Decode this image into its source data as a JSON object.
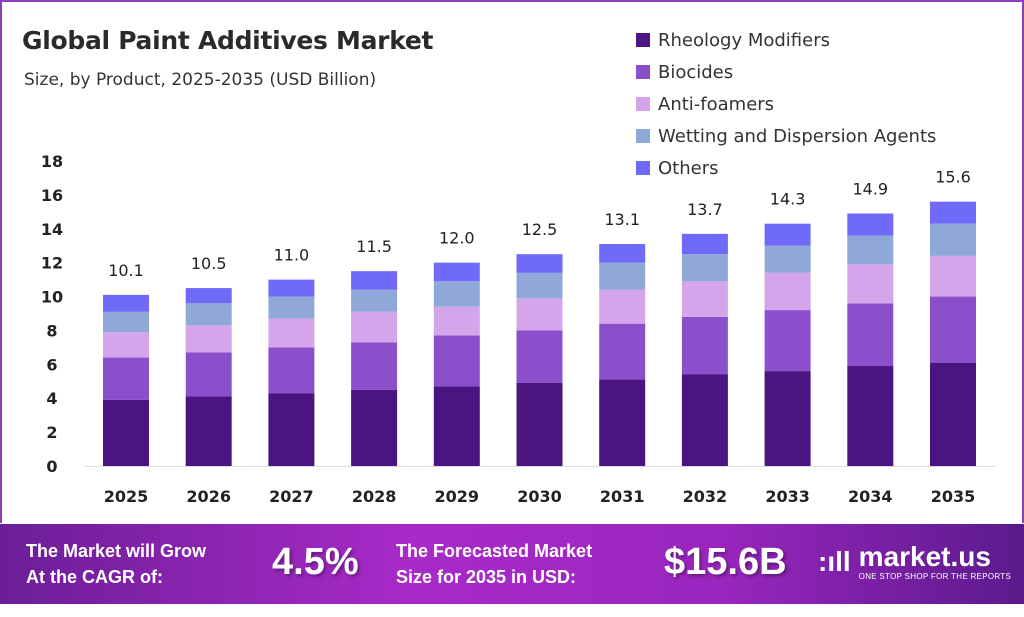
{
  "chart_data": {
    "type": "bar",
    "stacked": true,
    "title": "Global Paint Additives Market",
    "subtitle": "Size, by Product, 2025-2035 (USD Billion)",
    "xlabel": "",
    "ylabel": "",
    "ylim": [
      0,
      18
    ],
    "yticks": [
      0,
      2,
      4,
      6,
      8,
      10,
      12,
      14,
      16,
      18
    ],
    "grid": false,
    "legend_position": "top-right",
    "categories": [
      "2025",
      "2026",
      "2027",
      "2028",
      "2029",
      "2030",
      "2031",
      "2032",
      "2033",
      "2034",
      "2035"
    ],
    "totals": [
      "10.1",
      "10.5",
      "11.0",
      "11.5",
      "12.0",
      "12.5",
      "13.1",
      "13.7",
      "14.3",
      "14.9",
      "15.6"
    ],
    "series": [
      {
        "name": "Rheology Modifiers",
        "color": "#4a1580",
        "values": [
          3.9,
          4.1,
          4.3,
          4.5,
          4.7,
          4.9,
          5.1,
          5.4,
          5.6,
          5.9,
          6.1
        ]
      },
      {
        "name": "Biocides",
        "color": "#8b4fcb",
        "values": [
          2.5,
          2.6,
          2.7,
          2.8,
          3.0,
          3.1,
          3.3,
          3.4,
          3.6,
          3.7,
          3.9
        ]
      },
      {
        "name": "Anti-foamers",
        "color": "#d4a5ea",
        "values": [
          1.5,
          1.6,
          1.7,
          1.8,
          1.7,
          1.9,
          2.0,
          2.1,
          2.2,
          2.3,
          2.4
        ]
      },
      {
        "name": "Wetting and Dispersion Agents",
        "color": "#8fa8d8",
        "values": [
          1.2,
          1.3,
          1.3,
          1.3,
          1.5,
          1.5,
          1.6,
          1.6,
          1.6,
          1.7,
          1.9
        ]
      },
      {
        "name": "Others",
        "color": "#6f6af8",
        "values": [
          1.0,
          0.9,
          1.0,
          1.1,
          1.1,
          1.1,
          1.1,
          1.2,
          1.3,
          1.3,
          1.3
        ]
      }
    ]
  },
  "banner": {
    "cagr_label_line1": "The Market will Grow",
    "cagr_label_line2": "At the CAGR of:",
    "cagr_value": "4.5%",
    "forecast_label_line1": "The Forecasted Market",
    "forecast_label_line2": "Size for 2035 in USD:",
    "forecast_value": "$15.6B",
    "brand_name": "market.us",
    "brand_tagline": "ONE STOP SHOP FOR THE REPORTS"
  }
}
